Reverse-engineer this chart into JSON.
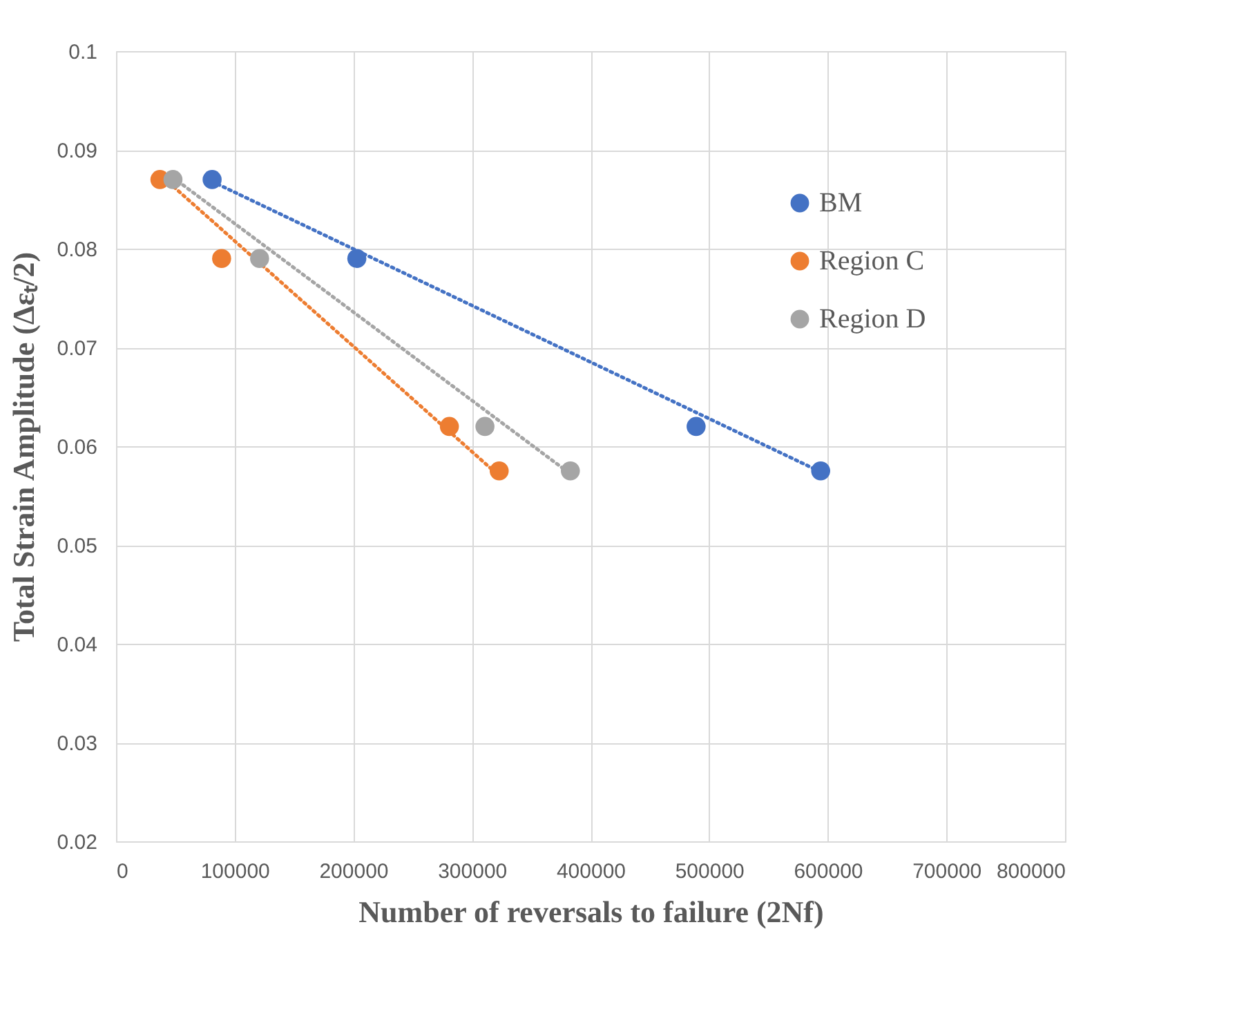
{
  "chart_data": {
    "type": "scatter",
    "xlabel": "Number of reversals to failure (2Nf)",
    "ylabel": "Total Strain Amplitude (Δεₜ/2)",
    "xlim": [
      0,
      800000
    ],
    "xticks": [
      0,
      100000,
      200000,
      300000,
      400000,
      500000,
      600000,
      700000,
      800000
    ],
    "ylim": [
      0.02,
      0.1
    ],
    "yticks": [
      0.02,
      0.03,
      0.04,
      0.05,
      0.06,
      0.07,
      0.08,
      0.09,
      0.1
    ],
    "grid": true,
    "legend": "top right",
    "marker": "circle",
    "series": [
      {
        "name": "BM",
        "color": "#4472c4",
        "x": [
          81000,
          203000,
          489000,
          594000
        ],
        "values": [
          0.087,
          0.079,
          0.062,
          0.0575
        ]
      },
      {
        "name": "Region C",
        "color": "#ed7d31",
        "x": [
          37000,
          89000,
          281000,
          323000
        ],
        "values": [
          0.087,
          0.079,
          0.062,
          0.0575
        ]
      },
      {
        "name": "Region D",
        "color": "#a5a5a5",
        "x": [
          48000,
          121000,
          311000,
          383000
        ],
        "values": [
          0.087,
          0.079,
          0.062,
          0.0575
        ]
      },
      {
        "type": "line",
        "color": "#4472c4",
        "line_style": "dotted",
        "marker": "none",
        "x": [
          81000,
          594000
        ],
        "values": [
          0.0868,
          0.0574
        ]
      },
      {
        "type": "line",
        "color": "#ed7d31",
        "line_style": "dotted",
        "marker": "none",
        "x": [
          37000,
          323000
        ],
        "values": [
          0.0875,
          0.057
        ]
      },
      {
        "type": "line",
        "color": "#a5a5a5",
        "line_style": "dotted",
        "marker": "none",
        "x": [
          48000,
          383000
        ],
        "values": [
          0.0872,
          0.0572
        ]
      }
    ]
  }
}
